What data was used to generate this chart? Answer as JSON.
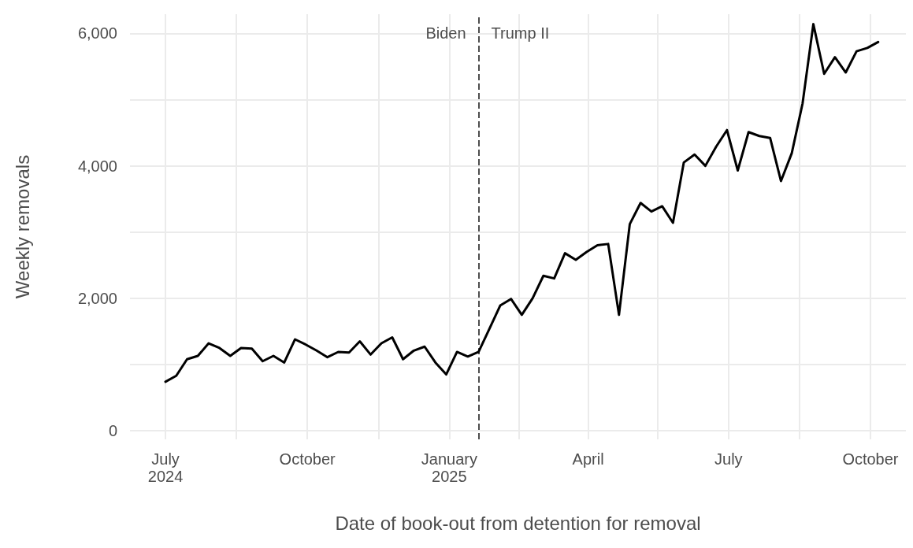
{
  "chart_data": {
    "type": "line",
    "xlabel": "Date of book-out from detention for removal",
    "ylabel": "Weekly removals",
    "x": [
      "2024-07-01",
      "2024-07-08",
      "2024-07-15",
      "2024-07-22",
      "2024-07-29",
      "2024-08-05",
      "2024-08-12",
      "2024-08-19",
      "2024-08-26",
      "2024-09-02",
      "2024-09-09",
      "2024-09-16",
      "2024-09-23",
      "2024-09-30",
      "2024-10-07",
      "2024-10-14",
      "2024-10-21",
      "2024-10-28",
      "2024-11-04",
      "2024-11-11",
      "2024-11-18",
      "2024-11-25",
      "2024-12-02",
      "2024-12-09",
      "2024-12-16",
      "2024-12-23",
      "2024-12-30",
      "2025-01-06",
      "2025-01-13",
      "2025-01-20",
      "2025-01-27",
      "2025-02-03",
      "2025-02-10",
      "2025-02-17",
      "2025-02-24",
      "2025-03-03",
      "2025-03-10",
      "2025-03-17",
      "2025-03-24",
      "2025-03-31",
      "2025-04-07",
      "2025-04-14",
      "2025-04-21",
      "2025-04-28",
      "2025-05-05",
      "2025-05-12",
      "2025-05-19",
      "2025-05-26",
      "2025-06-02",
      "2025-06-09",
      "2025-06-16",
      "2025-06-23",
      "2025-06-30",
      "2025-07-07",
      "2025-07-14",
      "2025-07-21",
      "2025-07-28",
      "2025-08-04",
      "2025-08-11",
      "2025-08-18",
      "2025-08-25",
      "2025-09-01",
      "2025-09-08",
      "2025-09-15",
      "2025-09-22",
      "2025-09-29",
      "2025-10-06"
    ],
    "series": [
      {
        "color": "#000000",
        "values": [
          740,
          830,
          1080,
          1130,
          1320,
          1250,
          1130,
          1250,
          1240,
          1050,
          1130,
          1030,
          1380,
          1300,
          1210,
          1110,
          1190,
          1180,
          1350,
          1150,
          1320,
          1410,
          1080,
          1210,
          1270,
          1030,
          850,
          1190,
          1120,
          1190,
          1540,
          1890,
          1990,
          1750,
          2000,
          2340,
          2300,
          2680,
          2580,
          2700,
          2800,
          2820,
          1750,
          3120,
          3440,
          3310,
          3390,
          3140,
          4050,
          4170,
          4000,
          4290,
          4540,
          3930,
          4510,
          4450,
          4420,
          3770,
          4190,
          4940,
          6140,
          5390,
          5640,
          5410,
          5730,
          5780,
          5870
        ]
      }
    ],
    "xlim": [
      "2024-06-08",
      "2025-10-24"
    ],
    "xticks": [
      {
        "value": "2024-07-01",
        "label": "July\n2024"
      },
      {
        "value": "2024-08-16",
        "label": null
      },
      {
        "value": "2024-10-01",
        "label": "October"
      },
      {
        "value": "2024-11-16",
        "label": null
      },
      {
        "value": "2025-01-01",
        "label": "January\n2025"
      },
      {
        "value": "2025-02-15",
        "label": null
      },
      {
        "value": "2025-04-01",
        "label": "April"
      },
      {
        "value": "2025-05-16",
        "label": null
      },
      {
        "value": "2025-07-01",
        "label": "July"
      },
      {
        "value": "2025-08-16",
        "label": null
      },
      {
        "value": "2025-10-01",
        "label": "October"
      }
    ],
    "ylim": [
      -130,
      6290
    ],
    "yticks": [
      0,
      {
        "value": 1000,
        "label": null
      },
      {
        "value": 2000,
        "label": "2,000"
      },
      {
        "value": 3000,
        "label": null
      },
      {
        "value": 4000,
        "label": "4,000"
      },
      {
        "value": 5000,
        "label": null
      },
      {
        "value": 6000,
        "label": "6,000"
      }
    ],
    "ref_lines": [
      {
        "axis": "x",
        "value": "2025-01-20",
        "color": "#4d4d4d",
        "line_style": "dashed"
      }
    ],
    "annotations": [
      {
        "text": "Biden",
        "x": "2025-01-20",
        "y": 6000
      },
      {
        "text": "Trump II",
        "x": "2025-01-20",
        "y": 6000
      }
    ],
    "grid": true,
    "marker": "none",
    "line_style": "solid"
  }
}
